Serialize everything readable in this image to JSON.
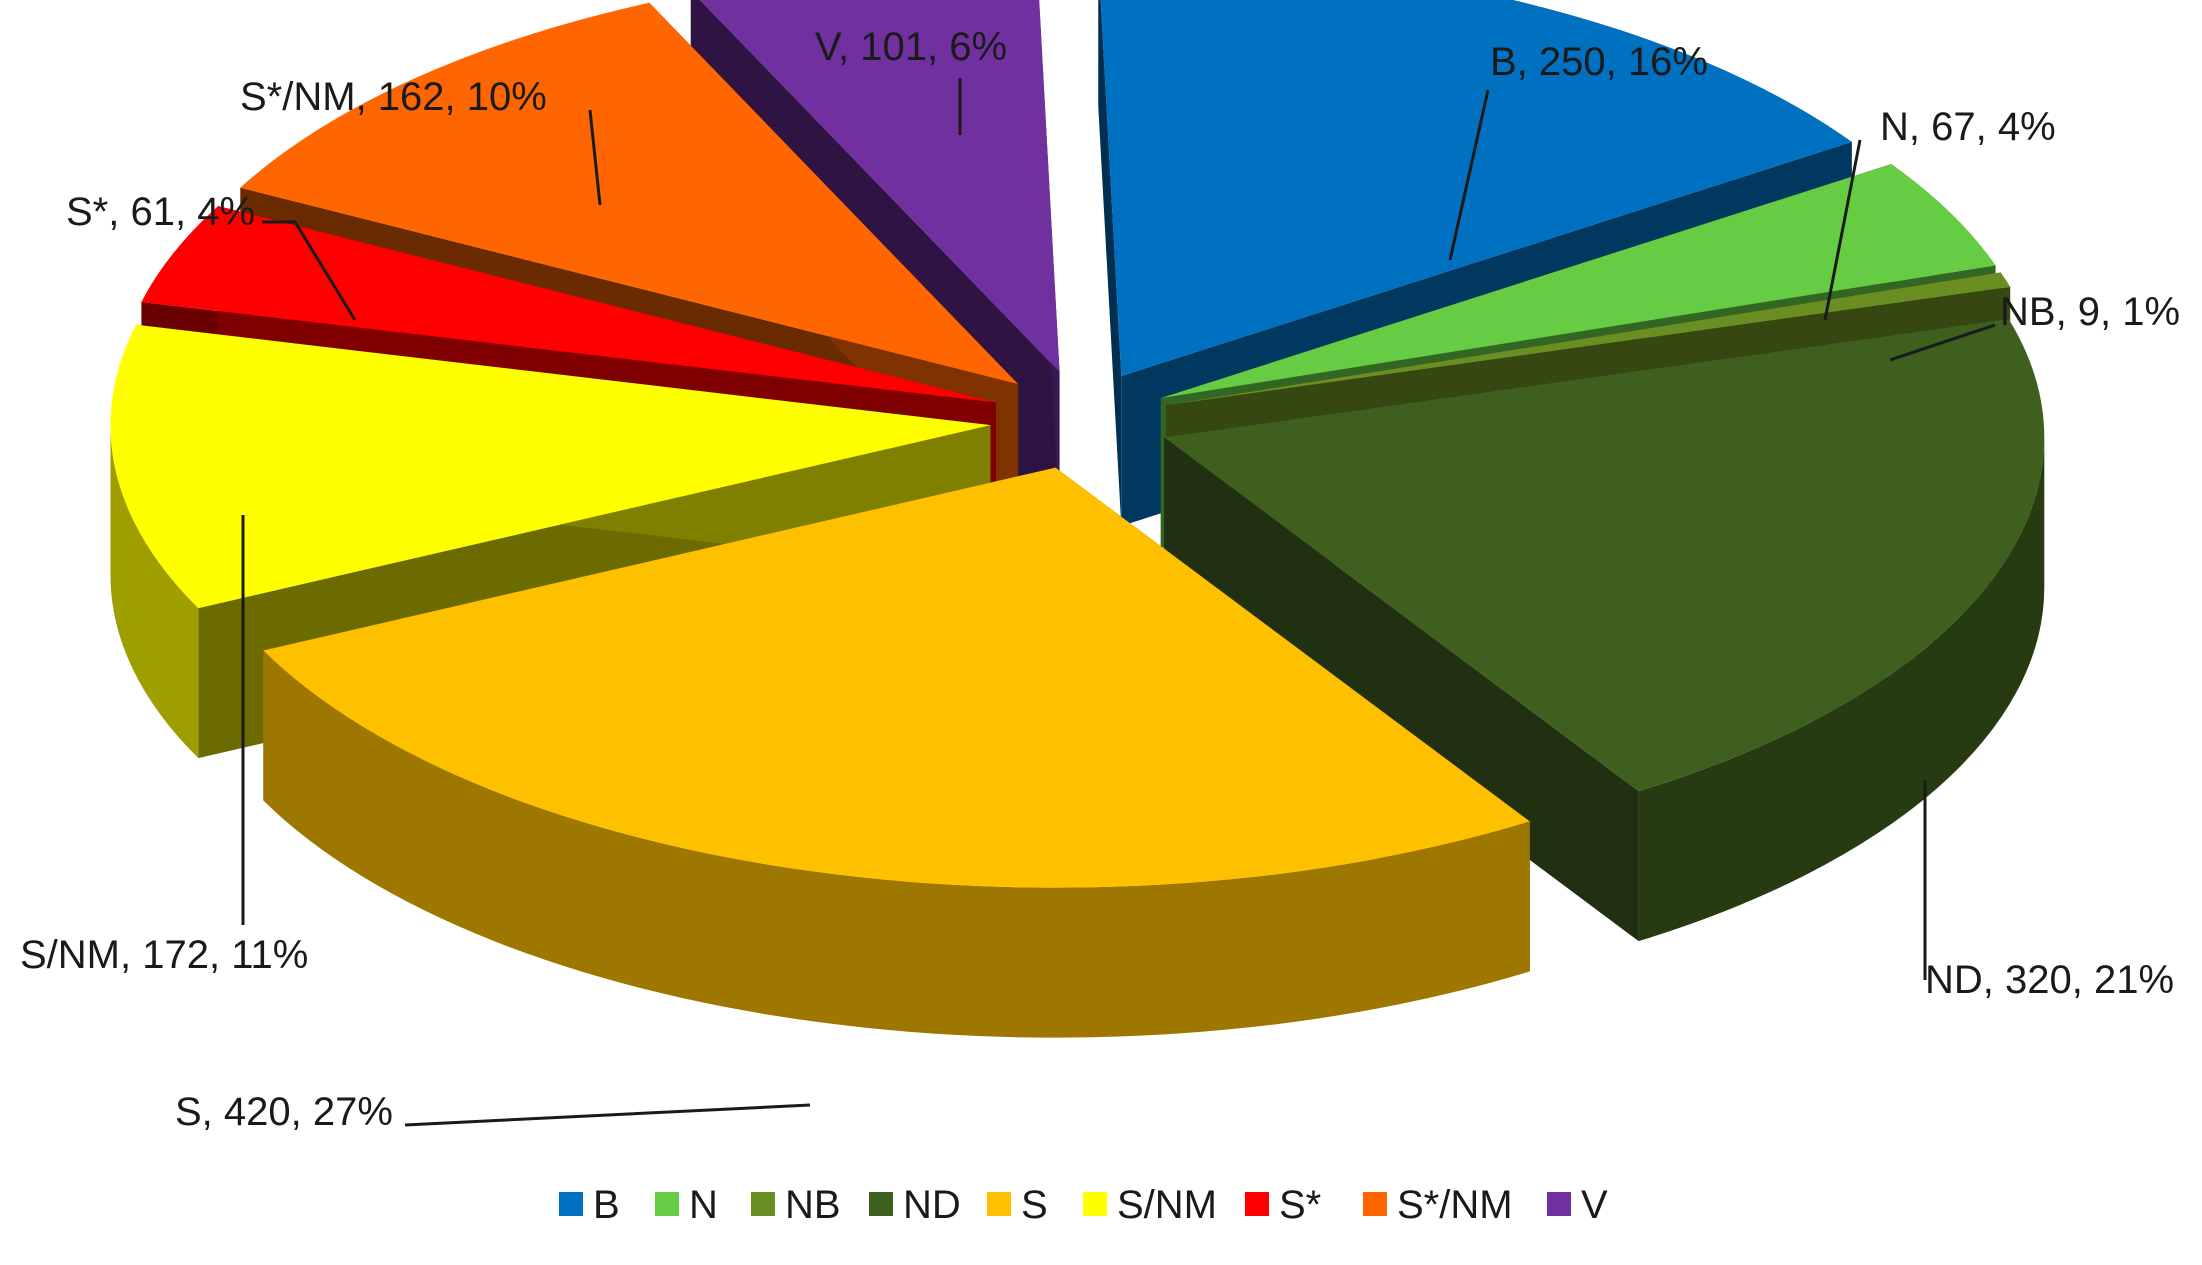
{
  "chart_data": {
    "type": "pie",
    "title": "",
    "three_d": true,
    "exploded": true,
    "legend_position": "bottom",
    "label_format": "category, value, percent",
    "slices": [
      {
        "category": "B",
        "value": 250,
        "percent": "16%",
        "label": "B, 250, 16%",
        "color": "#0070C0"
      },
      {
        "category": "N",
        "value": 67,
        "percent": "4%",
        "label": "N, 67, 4%",
        "color": "#66CC44"
      },
      {
        "category": "NB",
        "value": 9,
        "percent": "1%",
        "label": "NB, 9, 1%",
        "color": "#6B8E23"
      },
      {
        "category": "ND",
        "value": 320,
        "percent": "21%",
        "label": "ND, 320, 21%",
        "color": "#3F5F1F"
      },
      {
        "category": "S",
        "value": 420,
        "percent": "27%",
        "label": "S, 420, 27%",
        "color": "#FFC000"
      },
      {
        "category": "S/NM",
        "value": 172,
        "percent": "11%",
        "label": "S/NM, 172, 11%",
        "color": "#FFFF00"
      },
      {
        "category": "S*",
        "value": 61,
        "percent": "4%",
        "label": "S*, 61, 4%",
        "color": "#FF0000"
      },
      {
        "category": "S*/NM",
        "value": 162,
        "percent": "10%",
        "label": "S*/NM, 162, 10%",
        "color": "#FF6600"
      },
      {
        "category": "V",
        "value": 101,
        "percent": "6%",
        "label": "V, 101, 6%",
        "color": "#7030A0"
      }
    ]
  }
}
